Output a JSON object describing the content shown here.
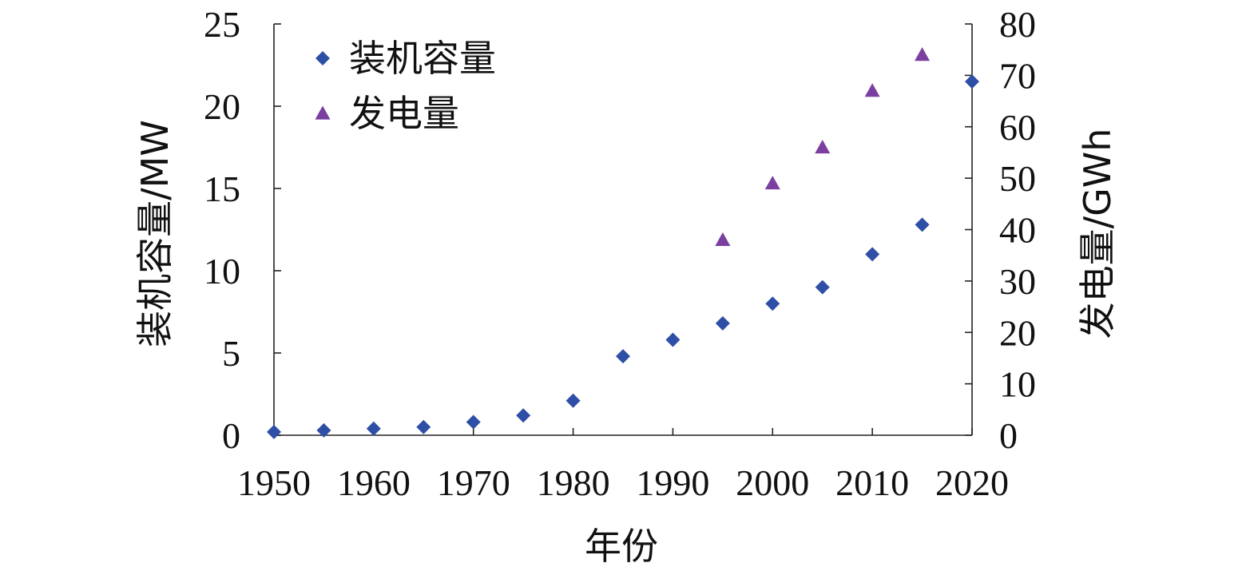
{
  "chart_data": {
    "type": "scatter",
    "xlabel": "年份",
    "ylabel_left": "装机容量/MW",
    "ylabel_right": "发电量/GWh",
    "xlim": [
      1950,
      2020
    ],
    "ylim_left": [
      0,
      25
    ],
    "ylim_right": [
      0,
      80
    ],
    "x_ticks": [
      1950,
      1960,
      1970,
      1980,
      1990,
      2000,
      2010,
      2020
    ],
    "y_left_ticks": [
      0,
      5,
      10,
      15,
      20,
      25
    ],
    "y_right_ticks": [
      0,
      10,
      20,
      30,
      40,
      50,
      60,
      70,
      80
    ],
    "grid": false,
    "legend_position": "top-left",
    "series": [
      {
        "name": "装机容量",
        "axis": "left",
        "marker": "diamond",
        "color": "#2E4FA5",
        "x": [
          1950,
          1955,
          1960,
          1965,
          1970,
          1975,
          1980,
          1985,
          1990,
          1995,
          2000,
          2005,
          2010,
          2015,
          2020
        ],
        "values": [
          0.2,
          0.3,
          0.4,
          0.5,
          0.8,
          1.2,
          2.1,
          4.8,
          5.8,
          6.8,
          8.0,
          9.0,
          11.0,
          12.8,
          21.5
        ]
      },
      {
        "name": "发电量",
        "axis": "right",
        "marker": "triangle",
        "color": "#7B3FA0",
        "x": [
          1995,
          2000,
          2005,
          2010,
          2015
        ],
        "values": [
          38,
          49,
          56,
          67,
          74
        ]
      }
    ]
  }
}
